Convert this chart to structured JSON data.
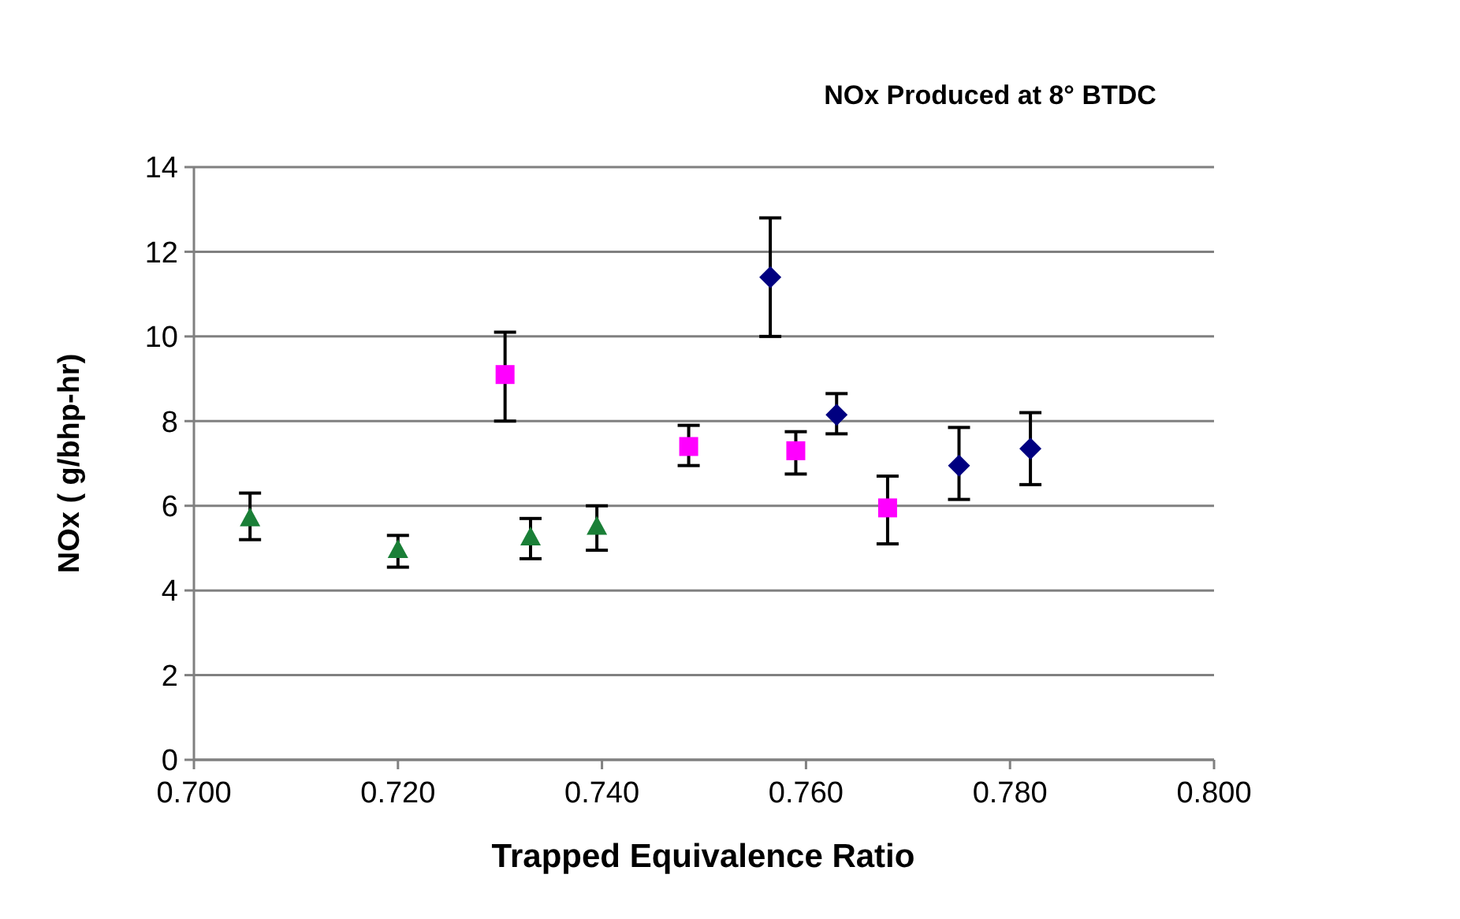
{
  "chart_data": {
    "type": "scatter",
    "title": "NOx Produced at 8° BTDC",
    "xlabel": "Trapped Equivalence Ratio",
    "ylabel": "NOx ( g/bhp-hr)",
    "xlim": [
      0.7,
      0.8
    ],
    "xticks": [
      {
        "value": 0.7,
        "label": "0.700"
      },
      {
        "value": 0.72,
        "label": "0.720"
      },
      {
        "value": 0.74,
        "label": "0.740"
      },
      {
        "value": 0.76,
        "label": "0.760"
      },
      {
        "value": 0.78,
        "label": "0.780"
      },
      {
        "value": 0.8,
        "label": "0.800"
      }
    ],
    "ylim": [
      0,
      14
    ],
    "yticks": [
      0,
      2,
      4,
      6,
      8,
      10,
      12,
      14
    ],
    "grid": "y",
    "series": [
      {
        "color": "#1a7f37",
        "marker": "triangle",
        "x": [
          0.7055,
          0.72,
          0.733,
          0.7395
        ],
        "values": [
          5.7,
          4.95,
          5.25,
          5.5
        ],
        "errors": [
          [
            5.2,
            6.3
          ],
          [
            4.55,
            5.3
          ],
          [
            4.75,
            5.7
          ],
          [
            4.95,
            6.0
          ]
        ]
      },
      {
        "color": "#ff00ff",
        "marker": "square",
        "x": [
          0.7305,
          0.7485,
          0.759,
          0.768
        ],
        "values": [
          9.1,
          7.4,
          7.3,
          5.95
        ],
        "errors": [
          [
            8.0,
            10.1
          ],
          [
            6.95,
            7.9
          ],
          [
            6.75,
            7.75
          ],
          [
            5.1,
            6.7
          ]
        ]
      },
      {
        "color": "#000080",
        "marker": "diamond",
        "x": [
          0.7565,
          0.763,
          0.775,
          0.782
        ],
        "values": [
          11.4,
          8.15,
          6.95,
          7.35
        ],
        "errors": [
          [
            10.0,
            12.8
          ],
          [
            7.7,
            8.65
          ],
          [
            6.15,
            7.85
          ],
          [
            6.5,
            8.2
          ]
        ]
      }
    ]
  }
}
